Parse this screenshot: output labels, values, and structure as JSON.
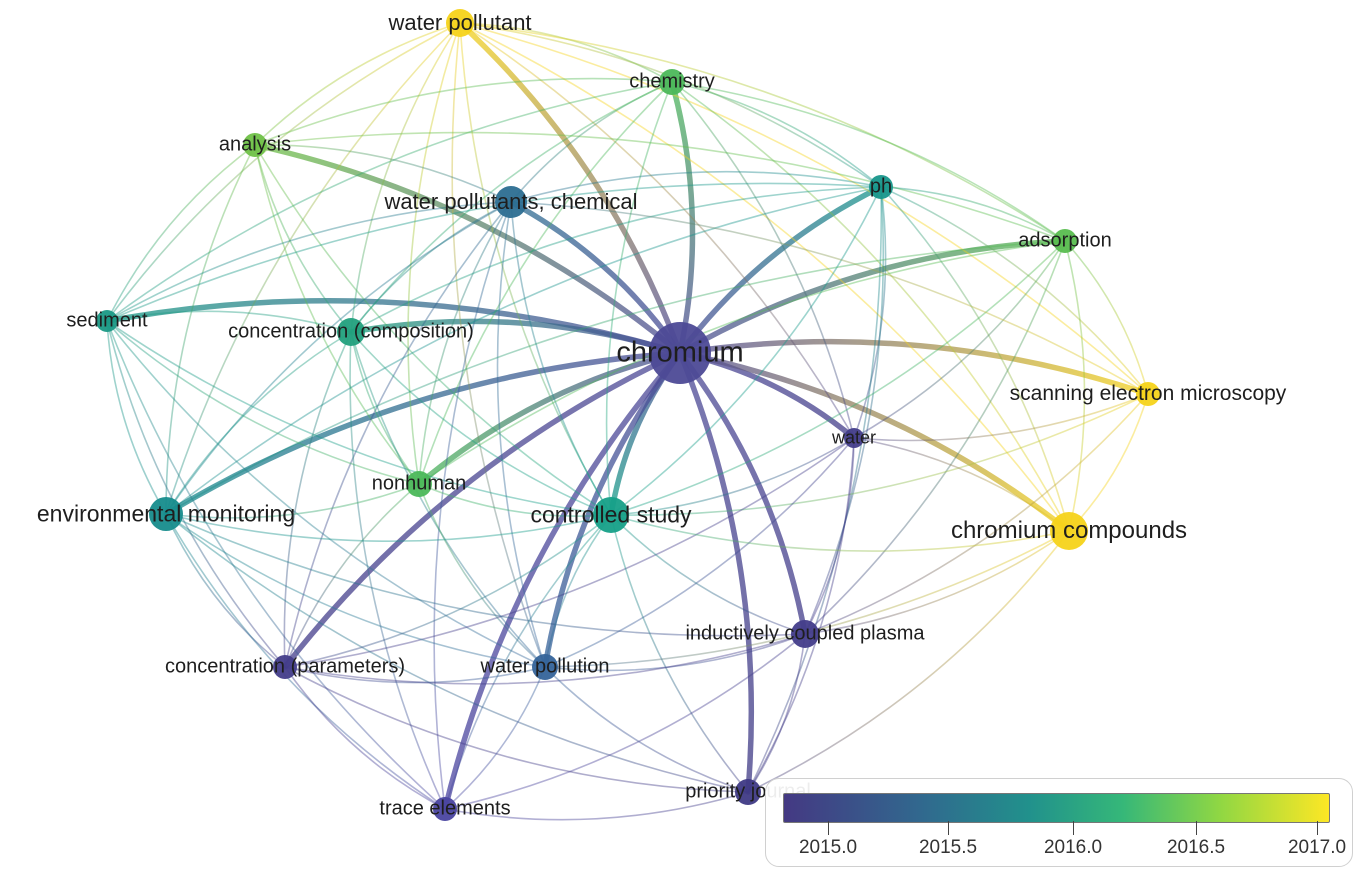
{
  "diagram": {
    "nodes": [
      {
        "id": "chromium",
        "label": "chromium",
        "color": "#4d4a96"
      },
      {
        "id": "water_pollutant",
        "label": "water pollutant",
        "color": "#f5d31a"
      },
      {
        "id": "chemistry",
        "label": "chemistry",
        "color": "#4cb85a"
      },
      {
        "id": "analysis",
        "label": "analysis",
        "color": "#6fc147"
      },
      {
        "id": "water_pollutants_chemical",
        "label": "water pollutants, chemical",
        "color": "#2c6e91"
      },
      {
        "id": "ph",
        "label": "ph",
        "color": "#17968b"
      },
      {
        "id": "adsorption",
        "label": "adsorption",
        "color": "#58bd4f"
      },
      {
        "id": "sediment",
        "label": "sediment",
        "color": "#1a9985"
      },
      {
        "id": "concentration_composition",
        "label": "concentration (composition)",
        "color": "#22a07d"
      },
      {
        "id": "scanning_electron_microscopy",
        "label": "scanning electron microscopy",
        "color": "#f5d31a"
      },
      {
        "id": "water",
        "label": "water",
        "color": "#433d8a"
      },
      {
        "id": "nonhuman",
        "label": "nonhuman",
        "color": "#4cb85a"
      },
      {
        "id": "environmental_monitoring",
        "label": "environmental monitoring",
        "color": "#168c8c"
      },
      {
        "id": "controlled_study",
        "label": "controlled study",
        "color": "#16a088"
      },
      {
        "id": "chromium_compounds",
        "label": "chromium compounds",
        "color": "#f5d31a"
      },
      {
        "id": "inductively_coupled_plasma",
        "label": "inductively coupled plasma",
        "color": "#433d8a"
      },
      {
        "id": "concentration_parameters",
        "label": "concentration (parameters)",
        "color": "#433d8a"
      },
      {
        "id": "water_pollution",
        "label": "water pollution",
        "color": "#35649a"
      },
      {
        "id": "priority_journal",
        "label": "priority journal",
        "color": "#3f3a85"
      },
      {
        "id": "trace_elements",
        "label": "trace elements",
        "color": "#4a44a0"
      }
    ],
    "edges": [
      [
        "chromium",
        "water_pollutant"
      ],
      [
        "chromium",
        "chemistry"
      ],
      [
        "chromium",
        "analysis"
      ],
      [
        "chromium",
        "water_pollutants_chemical"
      ],
      [
        "chromium",
        "ph"
      ],
      [
        "chromium",
        "adsorption"
      ],
      [
        "chromium",
        "sediment"
      ],
      [
        "chromium",
        "concentration_composition"
      ],
      [
        "chromium",
        "scanning_electron_microscopy"
      ],
      [
        "chromium",
        "water"
      ],
      [
        "chromium",
        "nonhuman"
      ],
      [
        "chromium",
        "environmental_monitoring"
      ],
      [
        "chromium",
        "controlled_study"
      ],
      [
        "chromium",
        "chromium_compounds"
      ],
      [
        "chromium",
        "inductively_coupled_plasma"
      ],
      [
        "chromium",
        "concentration_parameters"
      ],
      [
        "chromium",
        "water_pollution"
      ],
      [
        "chromium",
        "priority_journal"
      ],
      [
        "chromium",
        "trace_elements"
      ],
      [
        "water_pollutant",
        "analysis"
      ],
      [
        "water_pollutant",
        "chemistry"
      ],
      [
        "water_pollutant",
        "sediment"
      ],
      [
        "water_pollutant",
        "concentration_composition"
      ],
      [
        "water_pollutant",
        "adsorption"
      ],
      [
        "water_pollutant",
        "scanning_electron_microscopy"
      ],
      [
        "water_pollutant",
        "ph"
      ],
      [
        "water_pollutant",
        "chromium_compounds"
      ],
      [
        "water_pollutant",
        "environmental_monitoring"
      ],
      [
        "water_pollutant",
        "nonhuman"
      ],
      [
        "water_pollutant",
        "controlled_study"
      ],
      [
        "water_pollutant",
        "water"
      ],
      [
        "water_pollutant",
        "water_pollution"
      ],
      [
        "chemistry",
        "analysis"
      ],
      [
        "chemistry",
        "ph"
      ],
      [
        "chemistry",
        "adsorption"
      ],
      [
        "chemistry",
        "water_pollutants_chemical"
      ],
      [
        "chemistry",
        "sediment"
      ],
      [
        "chemistry",
        "concentration_composition"
      ],
      [
        "chemistry",
        "controlled_study"
      ],
      [
        "chemistry",
        "chromium_compounds"
      ],
      [
        "chemistry",
        "nonhuman"
      ],
      [
        "chemistry",
        "water"
      ],
      [
        "analysis",
        "sediment"
      ],
      [
        "analysis",
        "concentration_composition"
      ],
      [
        "analysis",
        "nonhuman"
      ],
      [
        "analysis",
        "environmental_monitoring"
      ],
      [
        "analysis",
        "water_pollutants_chemical"
      ],
      [
        "analysis",
        "controlled_study"
      ],
      [
        "analysis",
        "adsorption"
      ],
      [
        "water_pollutants_chemical",
        "sediment"
      ],
      [
        "water_pollutants_chemical",
        "environmental_monitoring"
      ],
      [
        "water_pollutants_chemical",
        "concentration_composition"
      ],
      [
        "water_pollutants_chemical",
        "controlled_study"
      ],
      [
        "water_pollutants_chemical",
        "ph"
      ],
      [
        "water_pollutants_chemical",
        "water_pollution"
      ],
      [
        "water_pollutants_chemical",
        "nonhuman"
      ],
      [
        "water_pollutants_chemical",
        "concentration_parameters"
      ],
      [
        "water_pollutants_chemical",
        "trace_elements"
      ],
      [
        "ph",
        "adsorption"
      ],
      [
        "ph",
        "water"
      ],
      [
        "ph",
        "controlled_study"
      ],
      [
        "ph",
        "chromium_compounds"
      ],
      [
        "ph",
        "inductively_coupled_plasma"
      ],
      [
        "ph",
        "scanning_electron_microscopy"
      ],
      [
        "ph",
        "environmental_monitoring"
      ],
      [
        "ph",
        "priority_journal"
      ],
      [
        "adsorption",
        "scanning_electron_microscopy"
      ],
      [
        "adsorption",
        "chromium_compounds"
      ],
      [
        "adsorption",
        "water"
      ],
      [
        "adsorption",
        "controlled_study"
      ],
      [
        "adsorption",
        "inductively_coupled_plasma"
      ],
      [
        "adsorption",
        "nonhuman"
      ],
      [
        "adsorption",
        "environmental_monitoring"
      ],
      [
        "sediment",
        "concentration_composition"
      ],
      [
        "sediment",
        "environmental_monitoring"
      ],
      [
        "sediment",
        "nonhuman"
      ],
      [
        "sediment",
        "controlled_study"
      ],
      [
        "sediment",
        "concentration_parameters"
      ],
      [
        "sediment",
        "water_pollution"
      ],
      [
        "sediment",
        "trace_elements"
      ],
      [
        "sediment",
        "ph"
      ],
      [
        "concentration_composition",
        "environmental_monitoring"
      ],
      [
        "concentration_composition",
        "nonhuman"
      ],
      [
        "concentration_composition",
        "controlled_study"
      ],
      [
        "concentration_composition",
        "water_pollution"
      ],
      [
        "concentration_composition",
        "concentration_parameters"
      ],
      [
        "concentration_composition",
        "trace_elements"
      ],
      [
        "concentration_composition",
        "ph"
      ],
      [
        "scanning_electron_microscopy",
        "chromium_compounds"
      ],
      [
        "scanning_electron_microscopy",
        "water"
      ],
      [
        "scanning_electron_microscopy",
        "controlled_study"
      ],
      [
        "scanning_electron_microscopy",
        "inductively_coupled_plasma"
      ],
      [
        "scanning_electron_microscopy",
        "water_pollutants_chemical"
      ],
      [
        "water",
        "chromium_compounds"
      ],
      [
        "water",
        "controlled_study"
      ],
      [
        "water",
        "inductively_coupled_plasma"
      ],
      [
        "water",
        "priority_journal"
      ],
      [
        "water",
        "water_pollution"
      ],
      [
        "water",
        "concentration_parameters"
      ],
      [
        "nonhuman",
        "environmental_monitoring"
      ],
      [
        "nonhuman",
        "controlled_study"
      ],
      [
        "nonhuman",
        "concentration_parameters"
      ],
      [
        "nonhuman",
        "water_pollution"
      ],
      [
        "environmental_monitoring",
        "controlled_study"
      ],
      [
        "environmental_monitoring",
        "concentration_parameters"
      ],
      [
        "environmental_monitoring",
        "water_pollution"
      ],
      [
        "environmental_monitoring",
        "trace_elements"
      ],
      [
        "environmental_monitoring",
        "priority_journal"
      ],
      [
        "environmental_monitoring",
        "inductively_coupled_plasma"
      ],
      [
        "controlled_study",
        "chromium_compounds"
      ],
      [
        "controlled_study",
        "inductively_coupled_plasma"
      ],
      [
        "controlled_study",
        "concentration_parameters"
      ],
      [
        "controlled_study",
        "water_pollution"
      ],
      [
        "controlled_study",
        "priority_journal"
      ],
      [
        "controlled_study",
        "trace_elements"
      ],
      [
        "chromium_compounds",
        "inductively_coupled_plasma"
      ],
      [
        "chromium_compounds",
        "priority_journal"
      ],
      [
        "chromium_compounds",
        "water_pollution"
      ],
      [
        "inductively_coupled_plasma",
        "priority_journal"
      ],
      [
        "inductively_coupled_plasma",
        "water_pollution"
      ],
      [
        "inductively_coupled_plasma",
        "trace_elements"
      ],
      [
        "inductively_coupled_plasma",
        "concentration_parameters"
      ],
      [
        "concentration_parameters",
        "water_pollution"
      ],
      [
        "concentration_parameters",
        "trace_elements"
      ],
      [
        "concentration_parameters",
        "priority_journal"
      ],
      [
        "water_pollution",
        "priority_journal"
      ],
      [
        "water_pollution",
        "trace_elements"
      ],
      [
        "priority_journal",
        "trace_elements"
      ]
    ]
  },
  "legend": {
    "ticks": [
      "2015.0",
      "2015.5",
      "2016.0",
      "2016.5",
      "2017.0"
    ],
    "colors": [
      "#443983",
      "#31688e",
      "#21918c",
      "#35b779",
      "#90d743",
      "#fde725"
    ]
  }
}
